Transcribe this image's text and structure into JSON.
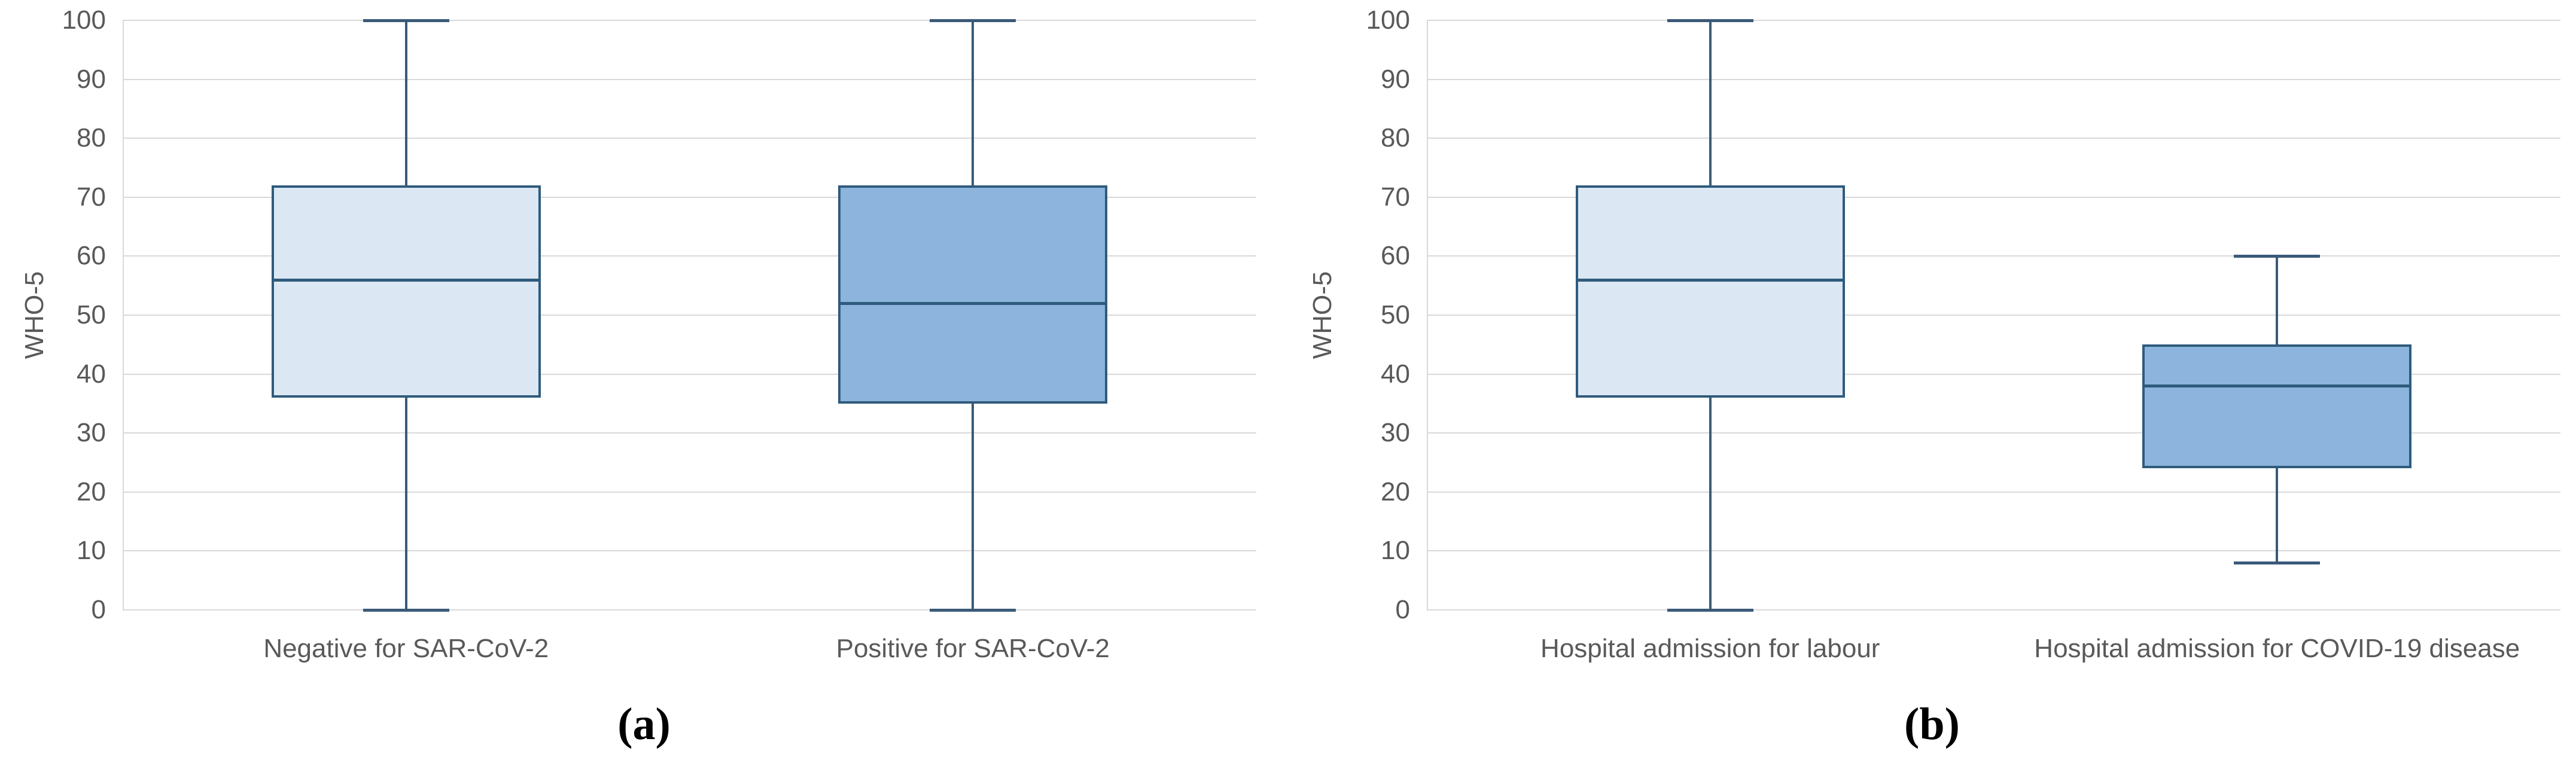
{
  "colors": {
    "background": "#FFFFFF",
    "box_border": "#2F5B7C",
    "whisker": "#3A5A78",
    "box_fill_light": "#DCE7F4",
    "box_fill_dark": "#8CB4DC",
    "gridline": "#D9D9D9",
    "axis_text": "#595959",
    "caption_text": "#000000"
  },
  "chart_data": [
    {
      "type": "box",
      "caption": "(a)",
      "title": "",
      "xlabel": "",
      "ylabel": "WHO-5",
      "ylim": [
        0,
        100
      ],
      "ytick_step": 10,
      "grid": true,
      "legend": false,
      "categories": [
        "Negative for SAR-CoV-2",
        "Positive for SAR-CoV-2"
      ],
      "series": [
        {
          "name": "Negative for SAR-CoV-2",
          "min": 0,
          "q1": 36,
          "median": 56,
          "q3": 72,
          "max": 100,
          "fill": "#DCE7F4"
        },
        {
          "name": "Positive for SAR-CoV-2",
          "min": 0,
          "q1": 35,
          "median": 52,
          "q3": 72,
          "max": 100,
          "fill": "#8CB4DC"
        }
      ]
    },
    {
      "type": "box",
      "caption": "(b)",
      "title": "",
      "xlabel": "",
      "ylabel": "WHO-5",
      "ylim": [
        0,
        100
      ],
      "ytick_step": 10,
      "grid": true,
      "legend": false,
      "categories": [
        "Hospital admission for labour",
        "Hospital admission for COVID-19 disease"
      ],
      "series": [
        {
          "name": "Hospital admission for labour",
          "min": 0,
          "q1": 36,
          "median": 56,
          "q3": 72,
          "max": 100,
          "fill": "#DCE7F4"
        },
        {
          "name": "Hospital admission for COVID-19 disease",
          "min": 8,
          "q1": 24,
          "median": 38,
          "q3": 45,
          "max": 60,
          "fill": "#8CB4DC"
        }
      ]
    }
  ]
}
